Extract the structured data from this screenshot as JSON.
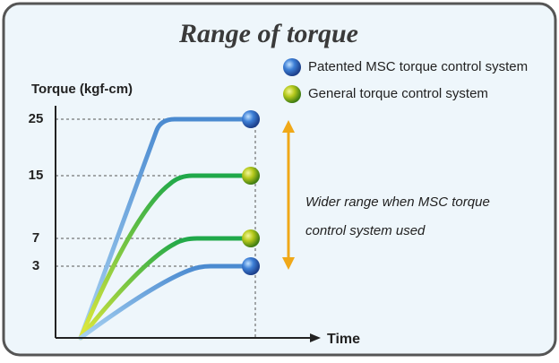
{
  "title": "Range of torque",
  "legend": [
    "Patented MSC torque control system",
    "General torque control system"
  ],
  "y_axis_label": "Torque (kgf-cm)",
  "x_axis_label": "Time",
  "ticks": [
    "25",
    "15",
    "7",
    "3"
  ],
  "annotation": [
    "Wider range when MSC torque",
    "control system used"
  ]
}
